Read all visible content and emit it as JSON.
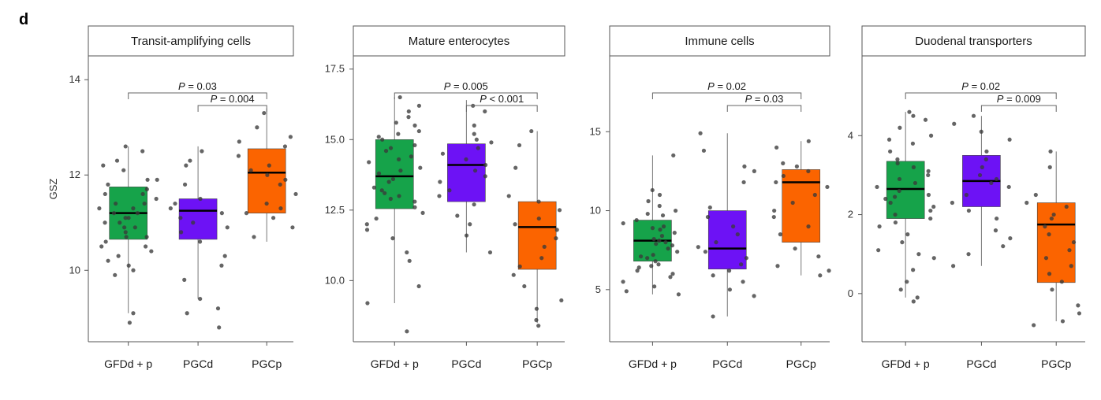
{
  "figure_letter": "d",
  "y_axis_label": "GSZ",
  "group_colors": [
    "#16a34a",
    "#6d12f5",
    "#fb6400"
  ],
  "chart_data": [
    {
      "type": "box",
      "title": "Transit-amplifying cells",
      "categories": [
        "GFDd + p",
        "PGCd",
        "PGCp"
      ],
      "ylim": [
        8.6,
        14.4
      ],
      "yticks": [
        10,
        12,
        14
      ],
      "yticks_labels": [
        "10",
        "12",
        "14"
      ],
      "boxes": [
        {
          "q1": 10.65,
          "median": 11.2,
          "q3": 11.75,
          "whisker_low": 9.1,
          "whisker_high": 12.6
        },
        {
          "q1": 10.65,
          "median": 11.25,
          "q3": 11.5,
          "whisker_low": 9.4,
          "whisker_high": 12.6
        },
        {
          "q1": 11.2,
          "median": 12.05,
          "q3": 12.55,
          "whisker_low": 10.6,
          "whisker_high": 13.4
        }
      ],
      "comparisons": [
        {
          "from": 0,
          "to": 2,
          "p": "= 0.03"
        },
        {
          "from": 1,
          "to": 2,
          "p": "= 0.004"
        }
      ],
      "points": [
        [
          12.5,
          12.2,
          12.1,
          11.9,
          11.8,
          11.7,
          11.6,
          11.5,
          11.4,
          11.4,
          11.3,
          11.2,
          11.2,
          11.1,
          11.0,
          11.0,
          10.9,
          10.8,
          10.7,
          10.6,
          10.5,
          10.4,
          10.3,
          10.1,
          10.0,
          9.9,
          9.1,
          8.9,
          12.6,
          12.3,
          11.9,
          11.6,
          11.3,
          11.1,
          10.9,
          10.7,
          10.5,
          10.2
        ],
        [
          12.5,
          12.3,
          12.2,
          11.5,
          11.4,
          11.3,
          11.2,
          11.1,
          11.0,
          10.9,
          10.8,
          10.6,
          10.3,
          10.1,
          9.8,
          9.4,
          9.2,
          9.1,
          8.8,
          11.8
        ],
        [
          13.3,
          13.0,
          12.8,
          12.7,
          12.6,
          12.4,
          12.2,
          12.1,
          12.0,
          11.9,
          11.8,
          11.6,
          11.4,
          11.3,
          11.2,
          11.1,
          10.9,
          10.7
        ]
      ]
    },
    {
      "type": "box",
      "title": "Mature enterocytes",
      "categories": [
        "GFDd + p",
        "PGCd",
        "PGCp"
      ],
      "ylim": [
        8.0,
        17.8
      ],
      "yticks": [
        10.0,
        12.5,
        15.0,
        17.5
      ],
      "yticks_labels": [
        "10.0",
        "12.5",
        "15.0",
        "17.5"
      ],
      "boxes": [
        {
          "q1": 12.55,
          "median": 13.7,
          "q3": 15.0,
          "whisker_low": 9.2,
          "whisker_high": 16.5
        },
        {
          "q1": 12.8,
          "median": 14.1,
          "q3": 14.85,
          "whisker_low": 11.0,
          "whisker_high": 16.4
        },
        {
          "q1": 10.4,
          "median": 11.9,
          "q3": 12.8,
          "whisker_low": 8.5,
          "whisker_high": 15.3
        }
      ],
      "comparisons": [
        {
          "from": 0,
          "to": 2,
          "p": "= 0.005"
        },
        {
          "from": 1,
          "to": 2,
          "p": "< 0.001"
        }
      ],
      "points": [
        [
          16.5,
          16.2,
          16.0,
          15.8,
          15.6,
          15.5,
          15.3,
          15.1,
          15.0,
          14.8,
          14.6,
          14.4,
          14.2,
          14.0,
          13.9,
          13.8,
          13.6,
          13.5,
          13.3,
          13.2,
          13.0,
          12.8,
          12.6,
          12.4,
          12.2,
          12.0,
          11.8,
          11.5,
          11.0,
          10.7,
          9.8,
          9.2,
          8.2,
          14.3,
          13.1,
          12.9,
          15.2,
          14.7
        ],
        [
          16.2,
          16.0,
          15.5,
          15.2,
          14.9,
          14.7,
          14.5,
          14.3,
          14.1,
          13.9,
          13.7,
          13.5,
          13.2,
          13.0,
          12.7,
          12.3,
          12.0,
          11.6,
          11.0,
          15.0
        ],
        [
          15.3,
          14.8,
          14.0,
          13.0,
          12.8,
          12.5,
          12.2,
          12.0,
          11.8,
          11.5,
          11.2,
          10.8,
          10.5,
          10.2,
          9.8,
          9.3,
          9.0,
          8.6,
          8.4
        ]
      ]
    },
    {
      "type": "box",
      "title": "Immune cells",
      "categories": [
        "GFDd + p",
        "PGCd",
        "PGCp"
      ],
      "ylim": [
        2.0,
        19.5
      ],
      "yticks": [
        5,
        10,
        15
      ],
      "yticks_labels": [
        "5",
        "10",
        "15"
      ],
      "boxes": [
        {
          "q1": 6.8,
          "median": 8.1,
          "q3": 9.4,
          "whisker_low": 4.7,
          "whisker_high": 13.5
        },
        {
          "q1": 6.3,
          "median": 7.6,
          "q3": 10.0,
          "whisker_low": 3.3,
          "whisker_high": 14.9
        },
        {
          "q1": 8.0,
          "median": 11.8,
          "q3": 12.6,
          "whisker_low": 5.9,
          "whisker_high": 14.4
        }
      ],
      "comparisons": [
        {
          "from": 0,
          "to": 2,
          "p": "= 0.02"
        },
        {
          "from": 1,
          "to": 2,
          "p": "= 0.03"
        }
      ],
      "points": [
        [
          13.5,
          11.3,
          11.0,
          10.6,
          10.3,
          10.0,
          9.7,
          9.4,
          9.2,
          9.0,
          8.8,
          8.6,
          8.4,
          8.2,
          8.1,
          8.0,
          7.8,
          7.6,
          7.4,
          7.2,
          7.0,
          6.8,
          6.6,
          6.4,
          6.2,
          6.0,
          5.8,
          5.5,
          5.2,
          4.9,
          4.7,
          9.8,
          8.9,
          7.9,
          7.1,
          6.5
        ],
        [
          14.9,
          13.8,
          12.8,
          12.5,
          11.8,
          10.2,
          9.6,
          9.0,
          8.5,
          8.0,
          7.7,
          7.4,
          7.0,
          6.6,
          6.2,
          5.9,
          5.5,
          5.0,
          4.6,
          3.3
        ],
        [
          14.4,
          14.0,
          13.0,
          12.8,
          12.5,
          12.2,
          11.8,
          11.5,
          11.0,
          10.5,
          10.0,
          9.6,
          9.0,
          8.5,
          7.6,
          7.1,
          6.5,
          6.2,
          5.9
        ]
      ]
    },
    {
      "type": "box",
      "title": "Duodenal transporters",
      "categories": [
        "GFDd + p",
        "PGCd",
        "PGCp"
      ],
      "ylim": [
        -1.1,
        5.9
      ],
      "yticks": [
        0,
        2,
        4
      ],
      "yticks_labels": [
        "0",
        "2",
        "4"
      ],
      "boxes": [
        {
          "q1": 1.9,
          "median": 2.65,
          "q3": 3.35,
          "whisker_low": -0.1,
          "whisker_high": 4.6
        },
        {
          "q1": 2.2,
          "median": 2.85,
          "q3": 3.5,
          "whisker_low": 0.7,
          "whisker_high": 4.5
        },
        {
          "q1": 0.28,
          "median": 1.75,
          "q3": 2.3,
          "whisker_low": -0.7,
          "whisker_high": 3.6
        }
      ],
      "comparisons": [
        {
          "from": 0,
          "to": 2,
          "p": "= 0.02"
        },
        {
          "from": 1,
          "to": 2,
          "p": "= 0.009"
        }
      ],
      "points": [
        [
          4.6,
          4.5,
          4.4,
          4.2,
          4.0,
          3.8,
          3.6,
          3.4,
          3.3,
          3.1,
          3.0,
          2.9,
          2.8,
          2.7,
          2.6,
          2.5,
          2.4,
          2.3,
          2.2,
          2.1,
          2.0,
          1.9,
          1.7,
          1.5,
          1.3,
          1.1,
          0.9,
          0.6,
          0.3,
          0.1,
          -0.2,
          -0.1,
          3.9,
          3.2,
          2.45,
          1.8,
          1.0
        ],
        [
          4.5,
          4.3,
          4.1,
          3.9,
          3.6,
          3.4,
          3.2,
          3.0,
          2.9,
          2.8,
          2.7,
          2.5,
          2.3,
          2.1,
          1.9,
          1.6,
          1.4,
          1.2,
          1.0,
          0.7
        ],
        [
          3.6,
          3.2,
          2.5,
          2.3,
          2.2,
          2.0,
          1.9,
          1.7,
          1.5,
          1.3,
          1.1,
          0.9,
          0.7,
          0.5,
          0.3,
          0.1,
          -0.3,
          -0.5,
          -0.7,
          -0.8
        ]
      ]
    }
  ]
}
